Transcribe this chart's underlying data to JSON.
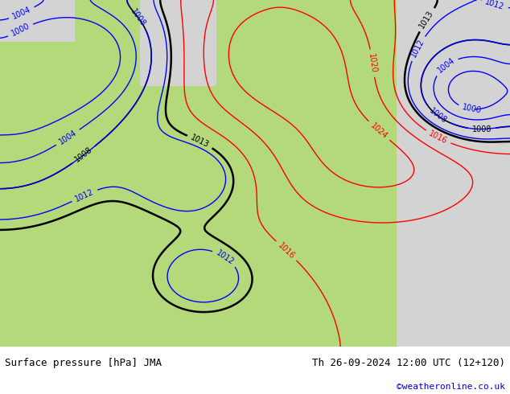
{
  "title_left": "Surface pressure [hPa] JMA",
  "title_right": "Th 26-09-2024 12:00 UTC (12+120)",
  "credit": "©weatheronline.co.uk",
  "bg_color": "#b3d97a",
  "land_color": "#b3d97a",
  "sea_color": "#d3d3d3",
  "contour_red_color": "red",
  "contour_blue_color": "blue",
  "contour_black_color": "black",
  "footer_bg": "#ffffff",
  "text_color_black": "#000000",
  "text_color_blue": "#0000cc",
  "text_color_red": "#cc0000",
  "figsize": [
    6.34,
    4.9
  ],
  "dpi": 100
}
